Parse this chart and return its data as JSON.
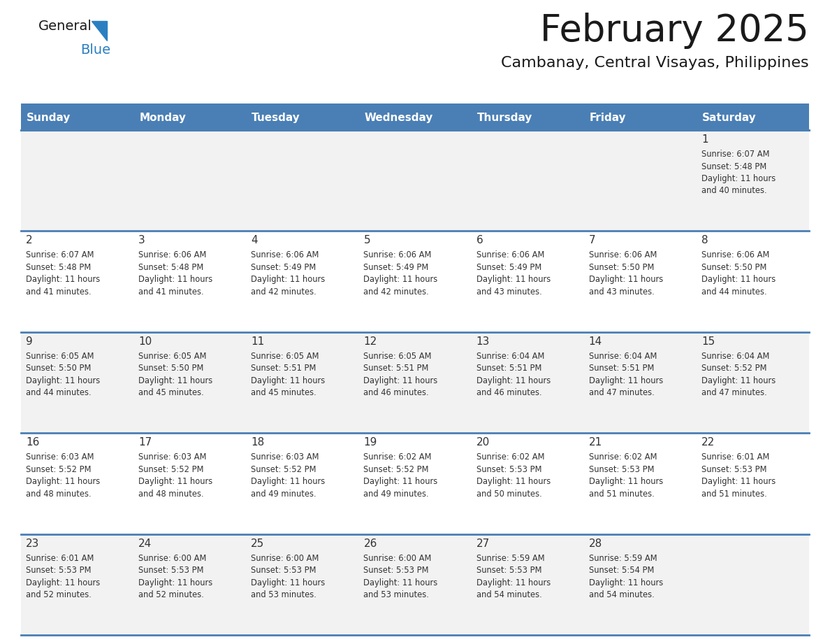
{
  "title": "February 2025",
  "subtitle": "Cambanay, Central Visayas, Philippines",
  "header_bg": "#4a7fb5",
  "header_text": "#ffffff",
  "header_days": [
    "Sunday",
    "Monday",
    "Tuesday",
    "Wednesday",
    "Thursday",
    "Friday",
    "Saturday"
  ],
  "row_bg_odd": "#f2f2f2",
  "row_bg_even": "#ffffff",
  "cell_border_color": "#4a7fb5",
  "day_number_color": "#333333",
  "info_text_color": "#333333",
  "title_color": "#1a1a1a",
  "subtitle_color": "#1a1a1a",
  "logo_general_color": "#1a1a1a",
  "logo_blue_color": "#2b7fc1",
  "logo_triangle_color": "#2b7fc1",
  "calendar_data": [
    [
      null,
      null,
      null,
      null,
      null,
      null,
      {
        "day": "1",
        "sunrise": "6:07 AM",
        "sunset": "5:48 PM",
        "daylight_hours": "11",
        "daylight_mins": "40"
      }
    ],
    [
      {
        "day": "2",
        "sunrise": "6:07 AM",
        "sunset": "5:48 PM",
        "daylight_hours": "11",
        "daylight_mins": "41"
      },
      {
        "day": "3",
        "sunrise": "6:06 AM",
        "sunset": "5:48 PM",
        "daylight_hours": "11",
        "daylight_mins": "41"
      },
      {
        "day": "4",
        "sunrise": "6:06 AM",
        "sunset": "5:49 PM",
        "daylight_hours": "11",
        "daylight_mins": "42"
      },
      {
        "day": "5",
        "sunrise": "6:06 AM",
        "sunset": "5:49 PM",
        "daylight_hours": "11",
        "daylight_mins": "42"
      },
      {
        "day": "6",
        "sunrise": "6:06 AM",
        "sunset": "5:49 PM",
        "daylight_hours": "11",
        "daylight_mins": "43"
      },
      {
        "day": "7",
        "sunrise": "6:06 AM",
        "sunset": "5:50 PM",
        "daylight_hours": "11",
        "daylight_mins": "43"
      },
      {
        "day": "8",
        "sunrise": "6:06 AM",
        "sunset": "5:50 PM",
        "daylight_hours": "11",
        "daylight_mins": "44"
      }
    ],
    [
      {
        "day": "9",
        "sunrise": "6:05 AM",
        "sunset": "5:50 PM",
        "daylight_hours": "11",
        "daylight_mins": "44"
      },
      {
        "day": "10",
        "sunrise": "6:05 AM",
        "sunset": "5:50 PM",
        "daylight_hours": "11",
        "daylight_mins": "45"
      },
      {
        "day": "11",
        "sunrise": "6:05 AM",
        "sunset": "5:51 PM",
        "daylight_hours": "11",
        "daylight_mins": "45"
      },
      {
        "day": "12",
        "sunrise": "6:05 AM",
        "sunset": "5:51 PM",
        "daylight_hours": "11",
        "daylight_mins": "46"
      },
      {
        "day": "13",
        "sunrise": "6:04 AM",
        "sunset": "5:51 PM",
        "daylight_hours": "11",
        "daylight_mins": "46"
      },
      {
        "day": "14",
        "sunrise": "6:04 AM",
        "sunset": "5:51 PM",
        "daylight_hours": "11",
        "daylight_mins": "47"
      },
      {
        "day": "15",
        "sunrise": "6:04 AM",
        "sunset": "5:52 PM",
        "daylight_hours": "11",
        "daylight_mins": "47"
      }
    ],
    [
      {
        "day": "16",
        "sunrise": "6:03 AM",
        "sunset": "5:52 PM",
        "daylight_hours": "11",
        "daylight_mins": "48"
      },
      {
        "day": "17",
        "sunrise": "6:03 AM",
        "sunset": "5:52 PM",
        "daylight_hours": "11",
        "daylight_mins": "48"
      },
      {
        "day": "18",
        "sunrise": "6:03 AM",
        "sunset": "5:52 PM",
        "daylight_hours": "11",
        "daylight_mins": "49"
      },
      {
        "day": "19",
        "sunrise": "6:02 AM",
        "sunset": "5:52 PM",
        "daylight_hours": "11",
        "daylight_mins": "49"
      },
      {
        "day": "20",
        "sunrise": "6:02 AM",
        "sunset": "5:53 PM",
        "daylight_hours": "11",
        "daylight_mins": "50"
      },
      {
        "day": "21",
        "sunrise": "6:02 AM",
        "sunset": "5:53 PM",
        "daylight_hours": "11",
        "daylight_mins": "51"
      },
      {
        "day": "22",
        "sunrise": "6:01 AM",
        "sunset": "5:53 PM",
        "daylight_hours": "11",
        "daylight_mins": "51"
      }
    ],
    [
      {
        "day": "23",
        "sunrise": "6:01 AM",
        "sunset": "5:53 PM",
        "daylight_hours": "11",
        "daylight_mins": "52"
      },
      {
        "day": "24",
        "sunrise": "6:00 AM",
        "sunset": "5:53 PM",
        "daylight_hours": "11",
        "daylight_mins": "52"
      },
      {
        "day": "25",
        "sunrise": "6:00 AM",
        "sunset": "5:53 PM",
        "daylight_hours": "11",
        "daylight_mins": "53"
      },
      {
        "day": "26",
        "sunrise": "6:00 AM",
        "sunset": "5:53 PM",
        "daylight_hours": "11",
        "daylight_mins": "53"
      },
      {
        "day": "27",
        "sunrise": "5:59 AM",
        "sunset": "5:53 PM",
        "daylight_hours": "11",
        "daylight_mins": "54"
      },
      {
        "day": "28",
        "sunrise": "5:59 AM",
        "sunset": "5:54 PM",
        "daylight_hours": "11",
        "daylight_mins": "54"
      },
      null
    ]
  ]
}
